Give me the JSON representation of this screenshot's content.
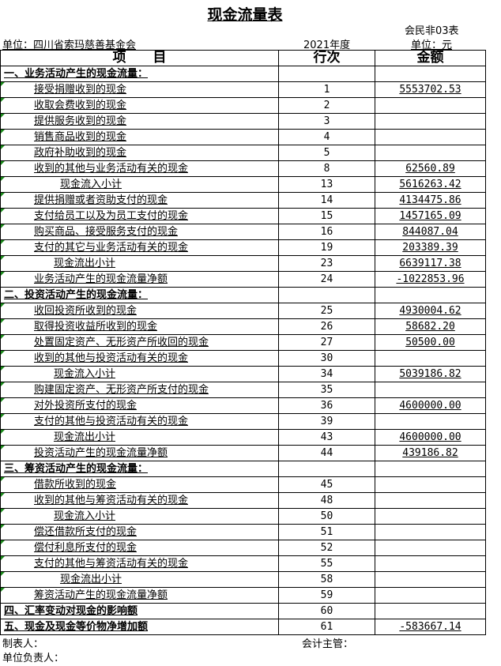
{
  "title": "现金流量表",
  "form_code": "会民非03表",
  "unit_org": "单位：四川省索玛慈善基金会",
  "year": "2021年度",
  "currency_unit": "单位：元",
  "headers": {
    "item": "项　　目",
    "line": "行次",
    "amount": "金额"
  },
  "rows": [
    {
      "type": "sec",
      "label": "一、业务活动产生的现金流量：",
      "line": "",
      "amount": ""
    },
    {
      "type": "item",
      "label": "接受捐赠收到的现金",
      "line": "1",
      "amount": "5553702.53"
    },
    {
      "type": "item",
      "label": "收取会费收到的现金",
      "line": "2",
      "amount": ""
    },
    {
      "type": "item",
      "label": "提供服务收到的现金",
      "line": "3",
      "amount": ""
    },
    {
      "type": "item",
      "label": "销售商品收到的现金",
      "line": "4",
      "amount": ""
    },
    {
      "type": "item",
      "label": "政府补助收到的现金",
      "line": "5",
      "amount": ""
    },
    {
      "type": "item",
      "label": "收到的其他与业务活动有关的现金",
      "line": "8",
      "amount": "62560.89"
    },
    {
      "type": "sub2",
      "label": "现金流入小计",
      "line": "13",
      "amount": "5616263.42"
    },
    {
      "type": "item",
      "label": "提供捐赠或者资助支付的现金",
      "line": "14",
      "amount": "4134475.86"
    },
    {
      "type": "item",
      "label": "支付给员工以及为员工支付的现金",
      "line": "15",
      "amount": "1457165.09"
    },
    {
      "type": "item",
      "label": "购买商品、接受服务支付的现金",
      "line": "16",
      "amount": "844087.04"
    },
    {
      "type": "item",
      "label": "支付的其它与业务活动有关的现金",
      "line": "19",
      "amount": "203389.39"
    },
    {
      "type": "sub",
      "label": "现金流出小计",
      "line": "23",
      "amount": "6639117.38"
    },
    {
      "type": "item",
      "label": "业务活动产生的现金流量净额",
      "line": "24",
      "amount": "-1022853.96"
    },
    {
      "type": "sec",
      "label": "二、投资活动产生的现金流量：",
      "line": "",
      "amount": ""
    },
    {
      "type": "item",
      "label": "收回投资所收到的现金",
      "line": "25",
      "amount": "4930004.62"
    },
    {
      "type": "item",
      "label": "取得投资收益所收到的现金",
      "line": "26",
      "amount": "58682.20"
    },
    {
      "type": "item",
      "label": "处置固定资产、无形资产所收回的现金",
      "line": "27",
      "amount": "50500.00"
    },
    {
      "type": "item",
      "label": "收到的其他与投资活动有关的现金",
      "line": "30",
      "amount": ""
    },
    {
      "type": "sub",
      "label": "现金流入小计",
      "line": "34",
      "amount": "5039186.82"
    },
    {
      "type": "item",
      "label": "购建固定资产、无形资产所支付的现金",
      "line": "35",
      "amount": ""
    },
    {
      "type": "item",
      "label": "对外投资所支付的现金",
      "line": "36",
      "amount": "4600000.00"
    },
    {
      "type": "item",
      "label": "支付的其他与投资活动有关的现金",
      "line": "39",
      "amount": ""
    },
    {
      "type": "sub",
      "label": "现金流出小计",
      "line": "43",
      "amount": "4600000.00"
    },
    {
      "type": "item",
      "label": "投资活动产生的现金流量净额",
      "line": "44",
      "amount": "439186.82"
    },
    {
      "type": "sec",
      "label": "三、筹资活动产生的现金流量：",
      "line": "",
      "amount": ""
    },
    {
      "type": "item",
      "label": "借款所收到的现金",
      "line": "45",
      "amount": ""
    },
    {
      "type": "item",
      "label": "收到的其他与筹资活动有关的现金",
      "line": "48",
      "amount": ""
    },
    {
      "type": "sub",
      "label": "现金流入小计",
      "line": "50",
      "amount": ""
    },
    {
      "type": "item",
      "label": "偿还借款所支付的现金",
      "line": "51",
      "amount": ""
    },
    {
      "type": "item",
      "label": "偿付利息所支付的现金",
      "line": "52",
      "amount": ""
    },
    {
      "type": "item",
      "label": "支付的其他与筹资活动有关的现金",
      "line": "55",
      "amount": ""
    },
    {
      "type": "sub2",
      "label": "现金流出小计",
      "line": "58",
      "amount": ""
    },
    {
      "type": "item",
      "label": "筹资活动产生的现金流量净额",
      "line": "59",
      "amount": ""
    },
    {
      "type": "sec",
      "label": "四、汇率变动对现金的影响额",
      "line": "60",
      "amount": ""
    },
    {
      "type": "sec",
      "label": "五、现金及现金等价物净增加额",
      "line": "61",
      "amount": "-583667.14"
    }
  ],
  "footer": {
    "preparer": "制表人：",
    "accounting_supervisor": "会计主管：",
    "unit_head": "单位负责人："
  },
  "colors": {
    "cell_marker": "#1a8a1a"
  }
}
